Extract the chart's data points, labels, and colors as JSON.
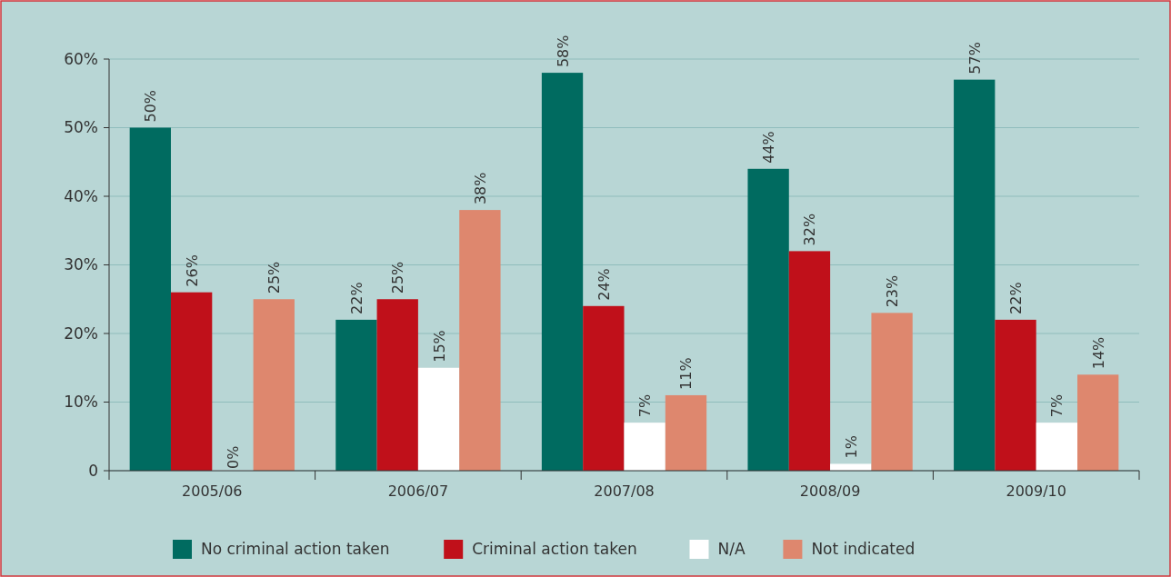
{
  "chart_data": {
    "type": "bar",
    "categories": [
      "2005/06",
      "2006/07",
      "2007/08",
      "2008/09",
      "2009/10"
    ],
    "series": [
      {
        "name": "No criminal action taken",
        "color": "#006b60",
        "values": [
          50,
          22,
          58,
          44,
          57
        ],
        "value_labels": [
          "50%",
          "22%",
          "58%",
          "44%",
          "57%"
        ]
      },
      {
        "name": "Criminal action taken",
        "color": "#c0101a",
        "values": [
          26,
          25,
          24,
          32,
          22
        ],
        "value_labels": [
          "26%",
          "25%",
          "24%",
          "32%",
          "22%"
        ]
      },
      {
        "name": "N/A",
        "color": "#ffffff",
        "values": [
          0,
          15,
          7,
          1,
          7
        ],
        "value_labels": [
          "0%",
          "15%",
          "7%",
          "1%",
          "7%"
        ]
      },
      {
        "name": "Not indicated",
        "color": "#de876e",
        "values": [
          25,
          38,
          11,
          23,
          14
        ],
        "value_labels": [
          "25%",
          "38%",
          "11%",
          "23%",
          "14%"
        ]
      }
    ],
    "ylim": [
      0,
      60
    ],
    "yticks": [
      0,
      {
        "value": 10,
        "label": "10%"
      },
      {
        "value": 20,
        "label": "20%"
      },
      {
        "value": 30,
        "label": "30%"
      },
      {
        "value": 40,
        "label": "40%"
      },
      {
        "value": 50,
        "label": "50%"
      },
      {
        "value": 60,
        "label": "60%"
      }
    ],
    "grid": "y",
    "legend": "bottom"
  }
}
